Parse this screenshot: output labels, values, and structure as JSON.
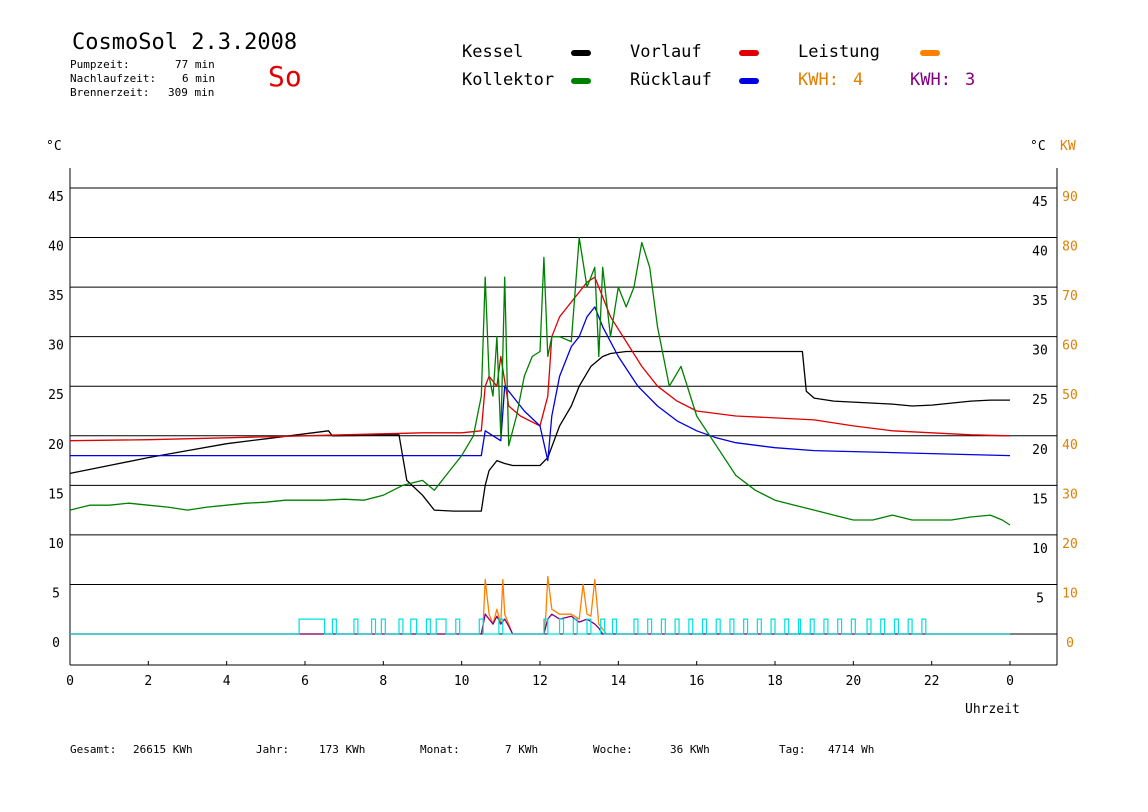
{
  "header": {
    "title": "CosmoSol 2.3.2008",
    "pumpzeit_label": "Pumpzeit:",
    "pumpzeit_value": "77 min",
    "nachlauf_label": "Nachlaufzeit:",
    "nachlauf_value": "6 min",
    "brenner_label": "Brennerzeit:",
    "brenner_value": "309 min",
    "day": "So"
  },
  "legend": {
    "kessel": "Kessel",
    "kollektor": "Kollektor",
    "vorlauf": "Vorlauf",
    "ruecklauf": "Rücklauf",
    "leistung": "Leistung",
    "kwh1_label": "KWH:",
    "kwh1_value": "4",
    "kwh2_label": "KWH:",
    "kwh2_value": "3"
  },
  "colors": {
    "kessel": "#000000",
    "kollektor": "#008000",
    "vorlauf": "#e00000",
    "ruecklauf": "#0000e0",
    "leistung": "#ff8000",
    "kwh2": "#800080",
    "pump": "#00e0e0",
    "power_axis": "#e08000"
  },
  "axis": {
    "left_unit": "°C",
    "right_unit": "°C",
    "right_unit2": "KW",
    "xlabel": "Uhrzeit"
  },
  "footer": {
    "gesamt_label": "Gesamt:",
    "gesamt_value": "26615 KWh",
    "jahr_label": "Jahr:",
    "jahr_value": "173 KWh",
    "monat_label": "Monat:",
    "monat_value": "7 KWh",
    "woche_label": "Woche:",
    "woche_value": "36 KWh",
    "tag_label": "Tag:",
    "tag_value": "4714 Wh"
  },
  "chart_data": {
    "type": "line",
    "xlabel": "Uhrzeit",
    "ylabel": "°C",
    "y2label": "KW",
    "xlim": [
      0,
      24
    ],
    "ylim": [
      0,
      45
    ],
    "y2lim": [
      0,
      90
    ],
    "xticks": [
      "0",
      "2",
      "4",
      "6",
      "8",
      "10",
      "12",
      "14",
      "16",
      "18",
      "20",
      "22",
      "0"
    ],
    "yticks_left": [
      0,
      5,
      10,
      15,
      20,
      25,
      30,
      35,
      40,
      45
    ],
    "yticks_right": [
      5,
      10,
      15,
      20,
      25,
      30,
      35,
      40,
      45
    ],
    "yticks_right_kw": [
      0,
      10,
      20,
      30,
      40,
      50,
      60,
      70,
      80,
      90
    ],
    "grid": true,
    "series": [
      {
        "name": "Kessel",
        "color": "#000000",
        "x": [
          0,
          1,
          2,
          3,
          4,
          5,
          6,
          6.6,
          6.7,
          8.4,
          8.6,
          9.0,
          9.3,
          9.8,
          10.5,
          10.6,
          10.7,
          10.9,
          11.1,
          11.3,
          11.6,
          12.0,
          12.2,
          12.5,
          12.8,
          13.0,
          13.3,
          13.6,
          13.8,
          14.2,
          15,
          16,
          17,
          18,
          18.7,
          18.8,
          19.0,
          19.5,
          20,
          20.5,
          21,
          21.5,
          22,
          22.5,
          23,
          23.5,
          24
        ],
        "y": [
          16.2,
          17.0,
          17.8,
          18.5,
          19.2,
          19.7,
          20.2,
          20.5,
          20.0,
          20.1,
          15.5,
          14.0,
          12.5,
          12.4,
          12.4,
          15.0,
          16.5,
          17.5,
          17.2,
          17.0,
          17.0,
          17.0,
          17.8,
          21.0,
          23.0,
          25.0,
          27.0,
          28.0,
          28.3,
          28.5,
          28.5,
          28.5,
          28.5,
          28.5,
          28.5,
          24.5,
          23.8,
          23.5,
          23.4,
          23.3,
          23.2,
          23.0,
          23.1,
          23.3,
          23.5,
          23.6,
          23.6
        ]
      },
      {
        "name": "Vorlauf",
        "color": "#e00000",
        "x": [
          0,
          2,
          4,
          6,
          8,
          9,
          10,
          10.5,
          10.6,
          10.7,
          10.9,
          11.0,
          11.2,
          11.5,
          12.0,
          12.2,
          12.3,
          12.5,
          12.8,
          13.0,
          13.2,
          13.4,
          13.5,
          13.8,
          14.2,
          14.6,
          15,
          15.5,
          16,
          17,
          18,
          19,
          20,
          21,
          22,
          23,
          24
        ],
        "y": [
          19.5,
          19.6,
          19.8,
          20.0,
          20.2,
          20.3,
          20.3,
          20.5,
          25.0,
          26.0,
          25.0,
          28.0,
          23.0,
          22.0,
          21.0,
          24.0,
          30.0,
          32.0,
          33.5,
          34.5,
          35.5,
          36.0,
          35.0,
          32.0,
          29.5,
          27.0,
          25.0,
          23.5,
          22.5,
          22.0,
          21.8,
          21.6,
          21.0,
          20.5,
          20.3,
          20.1,
          20.0
        ]
      },
      {
        "name": "Rücklauf",
        "color": "#0000e0",
        "x": [
          0,
          2,
          4,
          6,
          8,
          9,
          10,
          10.5,
          10.6,
          10.8,
          11.0,
          11.1,
          11.3,
          11.6,
          12.0,
          12.2,
          12.3,
          12.5,
          12.8,
          13.0,
          13.2,
          13.4,
          13.6,
          14.0,
          14.5,
          15,
          15.5,
          16,
          16.5,
          17,
          18,
          19,
          20,
          21,
          22,
          23,
          24
        ],
        "y": [
          18.0,
          18.0,
          18.0,
          18.0,
          18.0,
          18.0,
          18.0,
          18.0,
          20.5,
          20.0,
          19.5,
          25.0,
          24.0,
          22.5,
          21.0,
          17.5,
          22.0,
          26.0,
          29.0,
          30.0,
          32.0,
          33.0,
          31.0,
          28.0,
          25.0,
          23.0,
          21.5,
          20.5,
          19.8,
          19.3,
          18.8,
          18.5,
          18.4,
          18.3,
          18.2,
          18.1,
          18.0
        ]
      },
      {
        "name": "Kollektor",
        "color": "#008000",
        "x": [
          0,
          0.5,
          1,
          1.5,
          2,
          2.5,
          3,
          3.5,
          4,
          4.5,
          5,
          5.5,
          6,
          6.5,
          7,
          7.5,
          8,
          8.5,
          9.0,
          9.3,
          9.6,
          10.0,
          10.3,
          10.5,
          10.6,
          10.7,
          10.8,
          10.9,
          11.0,
          11.1,
          11.2,
          11.4,
          11.6,
          11.8,
          12.0,
          12.1,
          12.2,
          12.3,
          12.5,
          12.8,
          13.0,
          13.2,
          13.4,
          13.5,
          13.6,
          13.8,
          14.0,
          14.2,
          14.4,
          14.6,
          14.8,
          15.0,
          15.3,
          15.6,
          16.0,
          16.5,
          17,
          17.5,
          18,
          18.5,
          19,
          19.5,
          20,
          20.5,
          21,
          21.5,
          22,
          22.5,
          23,
          23.5,
          23.8,
          24
        ],
        "y": [
          12.5,
          13.0,
          13.0,
          13.2,
          13.0,
          12.8,
          12.5,
          12.8,
          13.0,
          13.2,
          13.3,
          13.5,
          13.5,
          13.5,
          13.6,
          13.5,
          14.0,
          15.0,
          15.5,
          14.5,
          16.0,
          18.0,
          20.0,
          24.0,
          36.0,
          26.0,
          24.0,
          30.0,
          20.0,
          36.0,
          19.0,
          22.0,
          26.0,
          28.0,
          28.5,
          38.0,
          28.0,
          30.0,
          30.0,
          29.5,
          40.0,
          35.0,
          37.0,
          28.0,
          37.0,
          30.0,
          35.0,
          33.0,
          35.0,
          39.5,
          37.0,
          31.0,
          25.0,
          27.0,
          22.0,
          19.0,
          16.0,
          14.5,
          13.5,
          13.0,
          12.5,
          12.0,
          11.5,
          11.5,
          12.0,
          11.5,
          11.5,
          11.5,
          11.8,
          12.0,
          11.5,
          11.0
        ]
      },
      {
        "name": "Leistung",
        "color": "#ff8000",
        "x": [
          0,
          10.5,
          10.55,
          10.6,
          10.7,
          10.8,
          10.9,
          11.0,
          11.05,
          11.1,
          11.2,
          11.3,
          12.1,
          12.15,
          12.2,
          12.3,
          12.5,
          12.8,
          13.0,
          13.1,
          13.2,
          13.3,
          13.4,
          13.5,
          13.6,
          13.7,
          24
        ],
        "y": [
          0,
          0,
          1.0,
          5.5,
          2.0,
          1.0,
          2.5,
          1.0,
          5.5,
          2.0,
          1.0,
          0,
          0,
          2.0,
          5.8,
          2.5,
          2.0,
          2.0,
          1.5,
          5.0,
          2.0,
          1.8,
          5.5,
          1.0,
          0.5,
          0,
          0
        ]
      },
      {
        "name": "KWH 3",
        "color": "#800080",
        "x": [
          0,
          10.5,
          10.6,
          10.7,
          10.8,
          10.9,
          11.0,
          11.1,
          11.2,
          11.3,
          12.1,
          12.2,
          12.3,
          12.5,
          12.8,
          13.0,
          13.2,
          13.4,
          13.5,
          13.6,
          24
        ],
        "y": [
          0,
          0,
          2.0,
          1.5,
          1.0,
          1.8,
          1.0,
          1.5,
          0.8,
          0,
          0,
          1.5,
          2.0,
          1.5,
          1.8,
          1.2,
          1.5,
          1.0,
          0.6,
          0,
          0
        ]
      },
      {
        "name": "Pumpe",
        "color": "#00e0e0",
        "pulses": [
          [
            5.85,
            6.5
          ],
          [
            6.7,
            6.8
          ],
          [
            7.25,
            7.35
          ],
          [
            7.7,
            7.8
          ],
          [
            7.95,
            8.05
          ],
          [
            8.4,
            8.5
          ],
          [
            8.7,
            8.85
          ],
          [
            9.1,
            9.2
          ],
          [
            9.35,
            9.6
          ],
          [
            9.85,
            9.95
          ],
          [
            10.45,
            10.55
          ],
          [
            10.95,
            11.05
          ],
          [
            12.1,
            12.2
          ],
          [
            12.5,
            12.6
          ],
          [
            12.85,
            12.95
          ],
          [
            13.2,
            13.3
          ],
          [
            13.55,
            13.65
          ],
          [
            13.85,
            13.95
          ],
          [
            14.4,
            14.5
          ],
          [
            14.75,
            14.85
          ],
          [
            15.1,
            15.2
          ],
          [
            15.45,
            15.55
          ],
          [
            15.8,
            15.9
          ],
          [
            16.15,
            16.25
          ],
          [
            16.5,
            16.6
          ],
          [
            16.85,
            16.95
          ],
          [
            17.2,
            17.3
          ],
          [
            17.55,
            17.65
          ],
          [
            17.9,
            18.0
          ],
          [
            18.25,
            18.35
          ],
          [
            18.6,
            18.65
          ],
          [
            18.9,
            19.0
          ],
          [
            19.25,
            19.35
          ],
          [
            19.6,
            19.7
          ],
          [
            19.95,
            20.05
          ],
          [
            20.35,
            20.45
          ],
          [
            20.7,
            20.8
          ],
          [
            21.05,
            21.15
          ],
          [
            21.4,
            21.5
          ],
          [
            21.75,
            21.85
          ]
        ],
        "height": 1.5
      }
    ]
  }
}
